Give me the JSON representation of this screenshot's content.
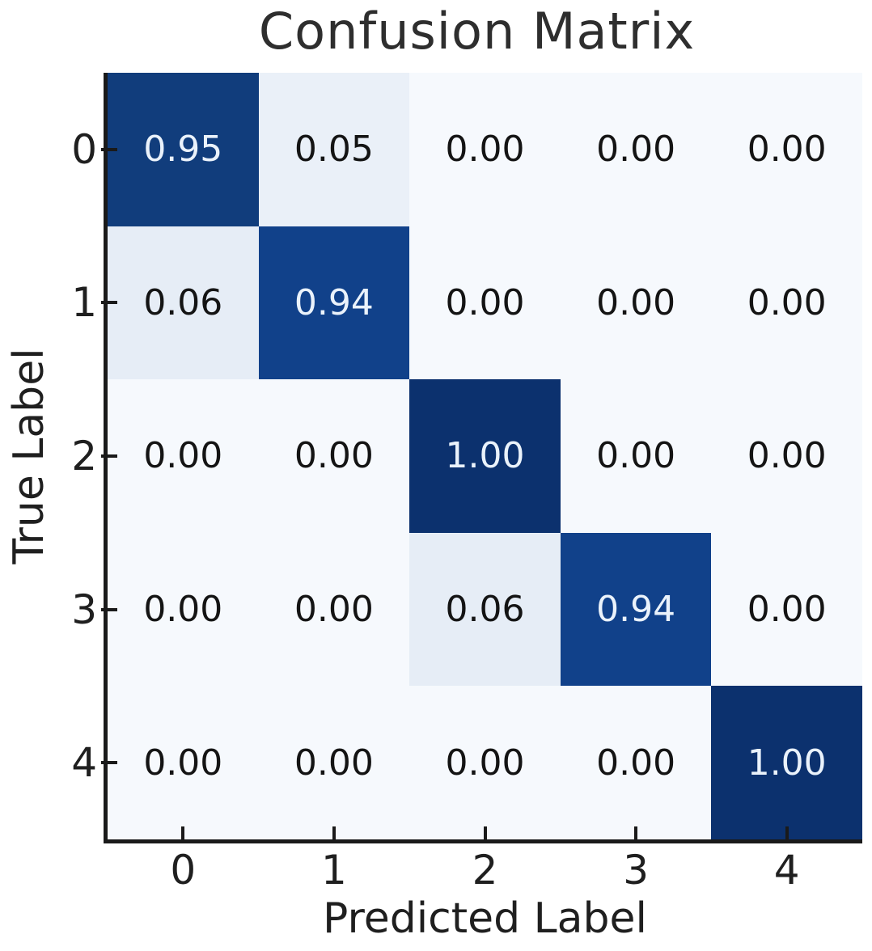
{
  "chart_data": {
    "type": "heatmap",
    "title": "Confusion Matrix",
    "xlabel": "Predicted Label",
    "ylabel": "True Label",
    "x_tick_labels": [
      "0",
      "1",
      "2",
      "3",
      "4"
    ],
    "y_tick_labels": [
      "0",
      "1",
      "2",
      "3",
      "4"
    ],
    "rows": [
      [
        0.95,
        0.05,
        0.0,
        0.0,
        0.0
      ],
      [
        0.06,
        0.94,
        0.0,
        0.0,
        0.0
      ],
      [
        0.0,
        0.0,
        1.0,
        0.0,
        0.0
      ],
      [
        0.0,
        0.0,
        0.06,
        0.94,
        0.0
      ],
      [
        0.0,
        0.0,
        0.0,
        0.0,
        1.0
      ]
    ],
    "cell_labels": [
      [
        "0.95",
        "0.05",
        "0.00",
        "0.00",
        "0.00"
      ],
      [
        "0.06",
        "0.94",
        "0.00",
        "0.00",
        "0.00"
      ],
      [
        "0.00",
        "0.00",
        "1.00",
        "0.00",
        "0.00"
      ],
      [
        "0.00",
        "0.00",
        "0.06",
        "0.94",
        "0.00"
      ],
      [
        "0.00",
        "0.00",
        "0.00",
        "0.00",
        "1.00"
      ]
    ],
    "value_range": [
      0,
      1
    ],
    "colormap": {
      "name": "Blues",
      "value_colors": {
        "0.00": "#f6f9fd",
        "0.05": "#eaf0f8",
        "0.06": "#e6edf6",
        "0.94": "#11418a",
        "0.95": "#113d7c",
        "1.00": "#0c316e"
      }
    },
    "text_color_on_dark": "#eaf2fb",
    "text_color_on_light": "#141414",
    "axis_color": "#1a1a1a",
    "title_color": "#2e2e2e",
    "grid": false,
    "legend": "none"
  }
}
